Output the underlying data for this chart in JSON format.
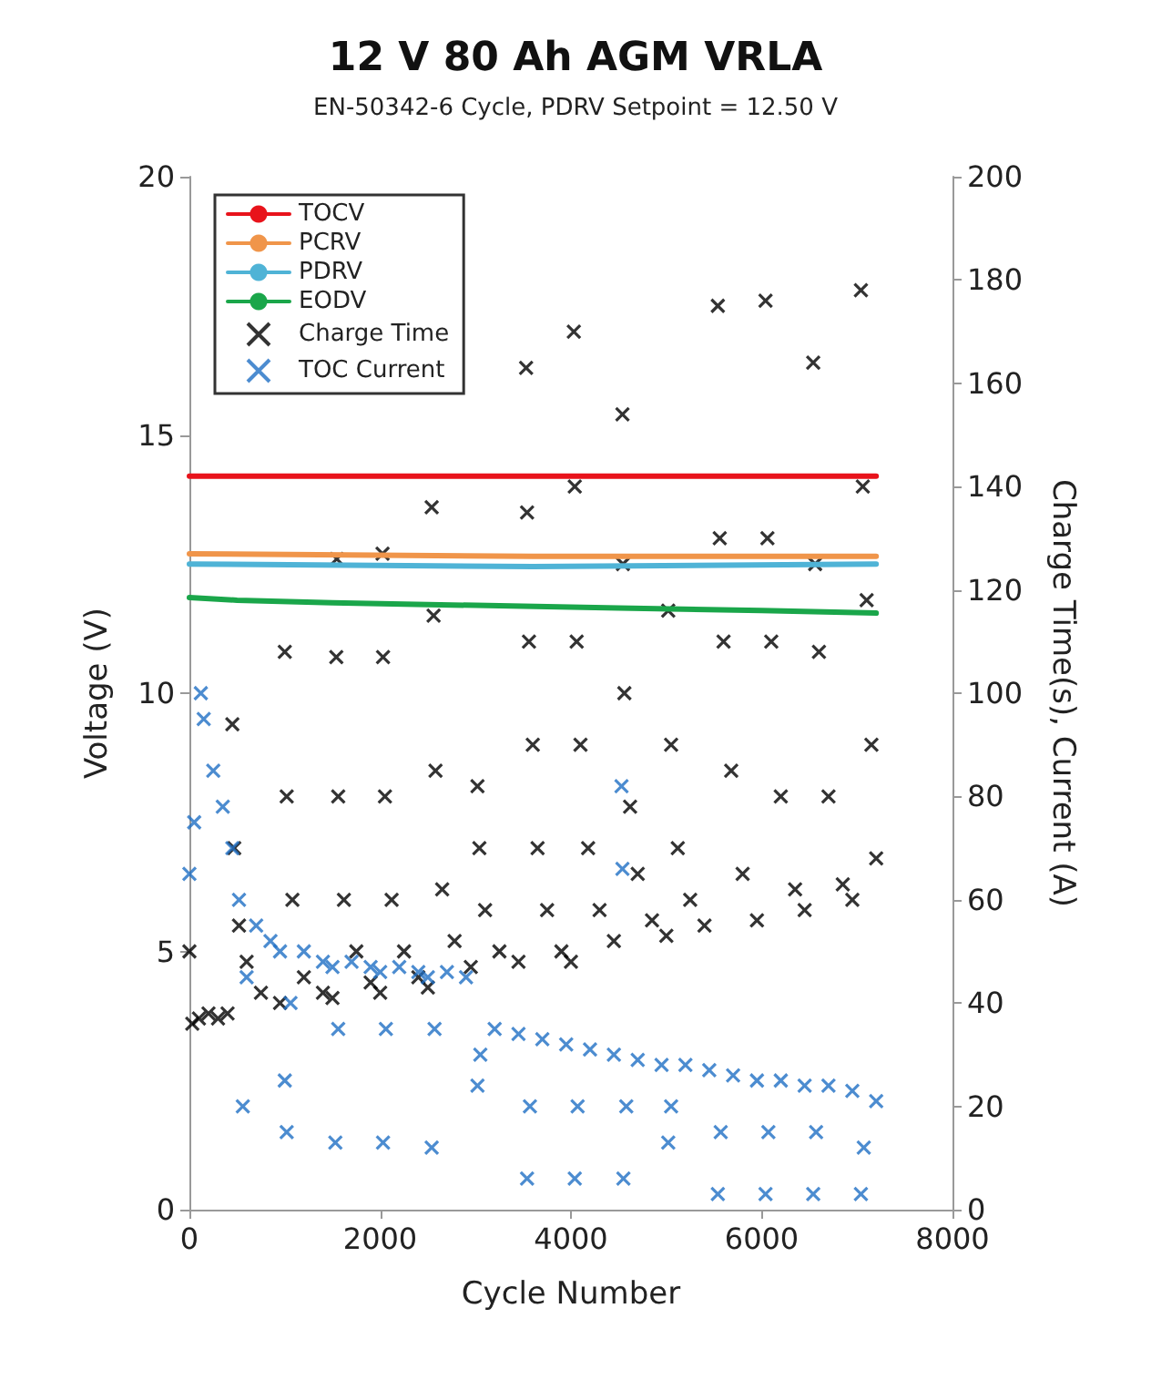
{
  "chart_data": {
    "type": "line",
    "title": "12 V 80 Ah AGM VRLA",
    "subtitle": "EN-50342-6 Cycle, PDRV Setpoint = 12.50 V",
    "xlabel": "Cycle Number",
    "ylabel": "Voltage (V)",
    "y2label": "Charge Time(s), Current (A)",
    "xlim": [
      0,
      8000
    ],
    "xticks": [
      0,
      2000,
      4000,
      6000,
      8000
    ],
    "ylim": [
      0,
      20
    ],
    "yticks": [
      0,
      5,
      10,
      15,
      20
    ],
    "y2lim": [
      0,
      200
    ],
    "y2ticks": [
      0,
      20,
      40,
      60,
      80,
      100,
      120,
      140,
      160,
      180,
      200
    ],
    "grid": false,
    "legend": "top left",
    "series": [
      {
        "name": "TOCV",
        "marker": "none",
        "color": "#e8131b",
        "x": [
          0,
          7200
        ],
        "values": [
          14.2,
          14.2
        ]
      },
      {
        "name": "PCRV",
        "marker": "none",
        "color": "#f0954a",
        "x": [
          0,
          3600,
          7200
        ],
        "values": [
          12.7,
          12.65,
          12.65
        ]
      },
      {
        "name": "PDRV",
        "marker": "none",
        "color": "#4fb3d6",
        "x": [
          0,
          3600,
          7200
        ],
        "values": [
          12.5,
          12.45,
          12.5
        ]
      },
      {
        "name": "EODV",
        "marker": "none",
        "color": "#1aa64a",
        "x": [
          0,
          500,
          1500,
          3000,
          4500,
          6000,
          7200
        ],
        "values": [
          11.85,
          11.8,
          11.75,
          11.7,
          11.65,
          11.6,
          11.55
        ]
      },
      {
        "name": "Charge Time",
        "type": "scatter",
        "marker": "cross",
        "axis": "y2",
        "color": "#000000",
        "x": [
          0,
          30,
          100,
          200,
          300,
          400,
          450,
          470,
          520,
          600,
          750,
          950,
          1000,
          1020,
          1080,
          1200,
          1400,
          1500,
          1540,
          1545,
          1560,
          1620,
          1750,
          1900,
          2000,
          2025,
          2030,
          2050,
          2120,
          2250,
          2400,
          2500,
          2540,
          2560,
          2580,
          2650,
          2780,
          2950,
          3020,
          3040,
          3100,
          3250,
          3450,
          3530,
          3540,
          3560,
          3600,
          3650,
          3750,
          3900,
          4000,
          4030,
          4040,
          4060,
          4100,
          4180,
          4300,
          4450,
          4540,
          4545,
          4560,
          4620,
          4700,
          4850,
          5000,
          5020,
          5050,
          5120,
          5250,
          5400,
          5540,
          5560,
          5600,
          5680,
          5800,
          5950,
          6040,
          6060,
          6100,
          6200,
          6350,
          6450,
          6540,
          6560,
          6600,
          6700,
          6850,
          6950,
          7040,
          7060,
          7100,
          7150,
          7200
        ],
        "values": [
          50,
          36,
          37,
          38,
          37,
          38,
          94,
          70,
          55,
          48,
          42,
          40,
          108,
          80,
          60,
          45,
          42,
          41,
          107,
          126,
          80,
          60,
          50,
          44,
          42,
          127,
          107,
          80,
          60,
          50,
          45,
          43,
          136,
          115,
          85,
          62,
          52,
          47,
          82,
          70,
          58,
          50,
          48,
          163,
          135,
          110,
          90,
          70,
          58,
          50,
          48,
          170,
          140,
          110,
          90,
          70,
          58,
          52,
          154,
          125,
          100,
          78,
          65,
          56,
          53,
          116,
          90,
          70,
          60,
          55,
          175,
          130,
          110,
          85,
          65,
          56,
          176,
          130,
          110,
          80,
          62,
          58,
          164,
          125,
          108,
          80,
          63,
          60,
          178,
          140,
          118,
          90,
          68
        ]
      },
      {
        "name": "TOC Current",
        "type": "scatter",
        "marker": "cross",
        "axis": "y2",
        "color": "#1f6fc4",
        "x": [
          0,
          50,
          120,
          150,
          250,
          350,
          450,
          520,
          560,
          600,
          700,
          850,
          950,
          1000,
          1020,
          1060,
          1200,
          1400,
          1500,
          1530,
          1560,
          1700,
          1900,
          2000,
          2030,
          2060,
          2200,
          2400,
          2500,
          2540,
          2570,
          2700,
          2900,
          3020,
          3050,
          3200,
          3450,
          3540,
          3570,
          3700,
          3950,
          4040,
          4070,
          4200,
          4450,
          4530,
          4540,
          4550,
          4580,
          4700,
          4950,
          5020,
          5050,
          5200,
          5450,
          5540,
          5570,
          5700,
          5950,
          6040,
          6070,
          6200,
          6450,
          6540,
          6570,
          6700,
          6950,
          7040,
          7070,
          7200
        ],
        "values": [
          65,
          75,
          100,
          95,
          85,
          78,
          70,
          60,
          20,
          45,
          55,
          52,
          50,
          25,
          15,
          40,
          50,
          48,
          47,
          13,
          35,
          48,
          47,
          46,
          13,
          35,
          47,
          46,
          45,
          12,
          35,
          46,
          45,
          24,
          30,
          35,
          34,
          6,
          20,
          33,
          32,
          6,
          20,
          31,
          30,
          82,
          66,
          6,
          20,
          29,
          28,
          13,
          20,
          28,
          27,
          3,
          15,
          26,
          25,
          3,
          15,
          25,
          24,
          3,
          15,
          24,
          23,
          3,
          12,
          21
        ]
      }
    ]
  }
}
